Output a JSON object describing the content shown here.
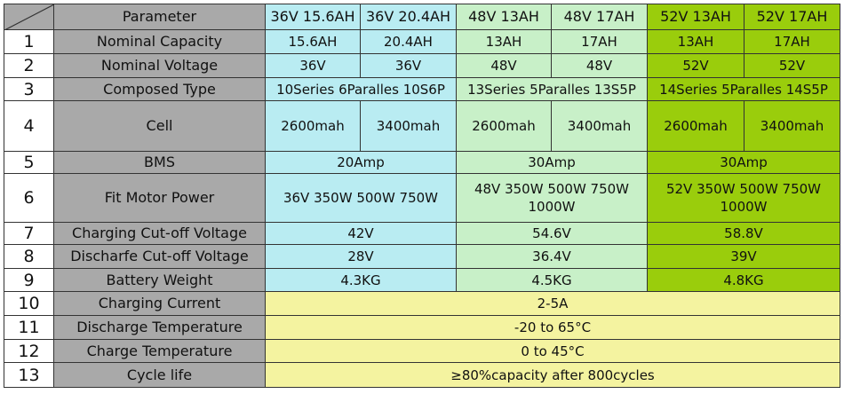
{
  "table": {
    "header": [
      "Parameter",
      "36V 15.6AH",
      "36V 20.4AH",
      "48V 13AH",
      "48V 17AH",
      "52V 13AH",
      "52V 17AH"
    ],
    "rows": [
      {
        "num": "1",
        "label": "Nominal Capacity",
        "cells": [
          "15.6AH",
          "20.4AH",
          "13AH",
          "17AH",
          "13AH",
          "17AH"
        ]
      },
      {
        "num": "2",
        "label": "Nominal Voltage",
        "cells": [
          "36V",
          "36V",
          "48V",
          "48V",
          "52V",
          "52V"
        ]
      },
      {
        "num": "3",
        "label": "Composed Type",
        "cells": [
          "10Series 6Paralles 10S6P",
          "13Series 5Paralles 13S5P",
          "14Series 5Paralles 14S5P"
        ]
      },
      {
        "num": "4",
        "label": "Cell",
        "cells": [
          "2600mah",
          "3400mah",
          "2600mah",
          "3400mah",
          "2600mah",
          "3400mah"
        ]
      },
      {
        "num": "5",
        "label": "BMS",
        "cells": [
          "20Amp",
          "30Amp",
          "30Amp"
        ]
      },
      {
        "num": "6",
        "label": "Fit Motor Power",
        "cells": [
          "36V 350W 500W 750W",
          "48V 350W 500W 750W 1000W",
          "52V 350W 500W 750W 1000W"
        ]
      },
      {
        "num": "7",
        "label": "Charging Cut-off Voltage",
        "cells": [
          "42V",
          "54.6V",
          "58.8V"
        ]
      },
      {
        "num": "8",
        "label": "Discharfe Cut-off Voltage",
        "cells": [
          "28V",
          "36.4V",
          "39V"
        ]
      },
      {
        "num": "9",
        "label": "Battery Weight",
        "cells": [
          "4.3KG",
          "4.5KG",
          "4.8KG"
        ]
      },
      {
        "num": "10",
        "label": "Charging Current",
        "cells": [
          "2-5A"
        ]
      },
      {
        "num": "11",
        "label": "Discharge Temperature",
        "cells": [
          "-20 to 65°C"
        ]
      },
      {
        "num": "12",
        "label": "Charge Temperature",
        "cells": [
          "0 to 45°C"
        ]
      },
      {
        "num": "13",
        "label": "Cycle life",
        "cells": [
          "≥80%capacity after 800cycles"
        ]
      }
    ]
  }
}
